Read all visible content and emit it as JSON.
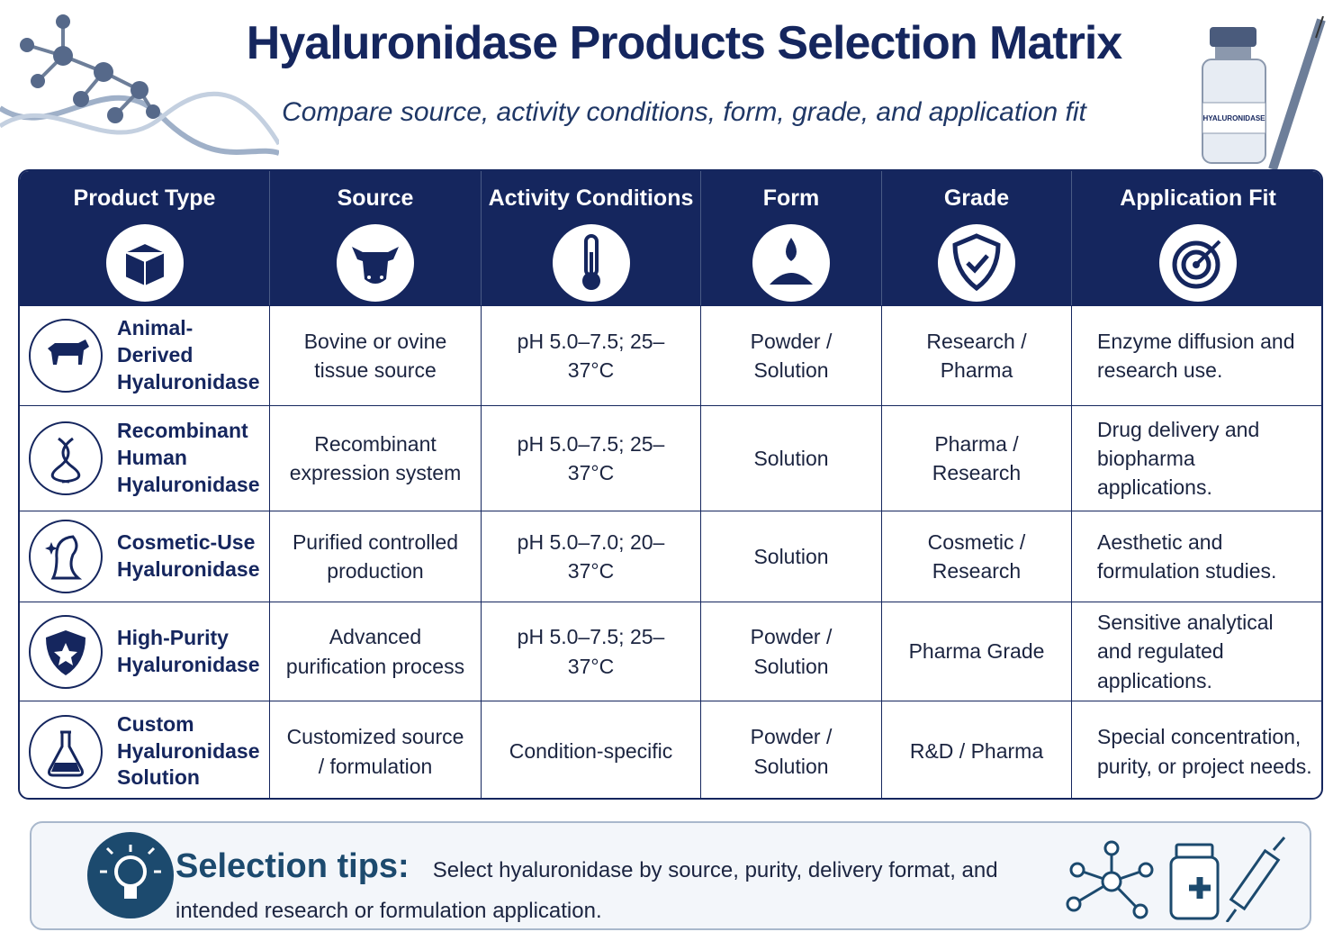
{
  "header": {
    "title": "Hyaluronidase Products Selection Matrix",
    "subtitle": "Compare source, activity conditions, form, grade, and application fit",
    "vial_label": "HYALURONIDASE"
  },
  "table": {
    "columns": [
      "Product Type",
      "Source",
      "Activity Conditions",
      "Form",
      "Grade",
      "Application Fit"
    ],
    "rows": [
      [
        "Animal-Derived Hyaluronidase",
        "Bovine or ovine tissue source",
        "pH 5.0–7.5; 25–37°C",
        "Powder / Solution",
        "Research / Pharma",
        "Enzyme diffusion and research use."
      ],
      [
        "Recombinant Human Hyaluronidase",
        "Recombinant expression system",
        "pH 5.0–7.5; 25–37°C",
        "Solution",
        "Pharma / Research",
        "Drug delivery and biopharma applications."
      ],
      [
        "Cosmetic-Use Hyaluronidase",
        "Purified controlled production",
        "pH 5.0–7.0; 20–37°C",
        "Solution",
        "Cosmetic / Research",
        "Aesthetic and formulation studies."
      ],
      [
        "High-Purity Hyaluronidase",
        "Advanced purification process",
        "pH 5.0–7.5; 25–37°C",
        "Powder / Solution",
        "Pharma Grade",
        "Sensitive analytical and regulated applications."
      ],
      [
        "Custom Hyaluronidase Solution",
        "Customized source / formulation",
        "Condition-specific",
        "Powder / Solution",
        "R&D / Pharma",
        "Special concentration, purity, or project needs."
      ]
    ]
  },
  "tips": {
    "label": "Selection tips:",
    "text": "Select hyaluronidase by source, purity, delivery format, and intended research or formulation application."
  }
}
